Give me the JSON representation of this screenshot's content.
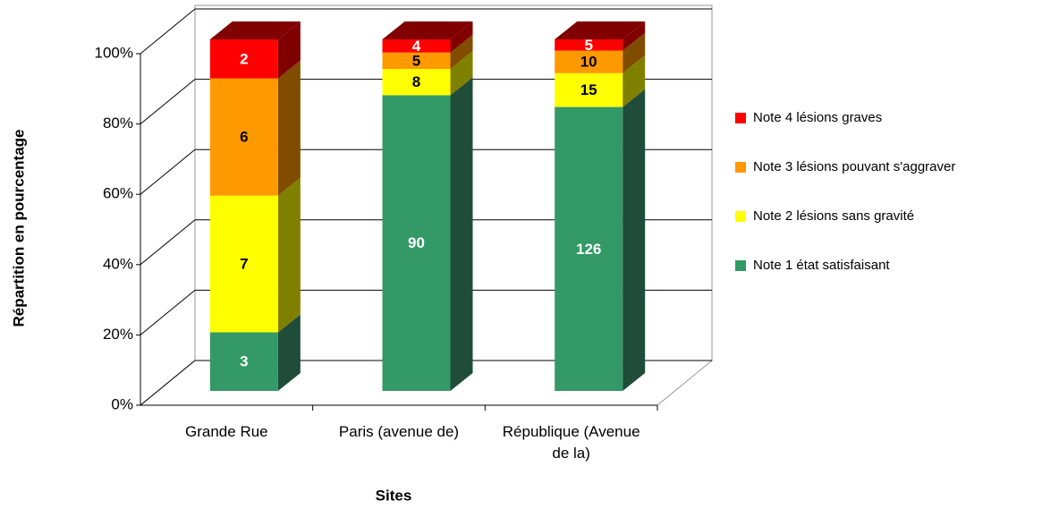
{
  "chart_data": {
    "type": "bar3d",
    "stacking": "percent",
    "y_label": "Répartition en pourcentage",
    "x_label": "Sites",
    "categories": [
      "Grande Rue",
      "Paris (avenue de)",
      "République (Avenue de la)"
    ],
    "series": [
      {
        "name": "Note 1 état satisfaisant",
        "color": "#339966",
        "side_color": "#1f4d3a",
        "label_color": "#ffffff",
        "values": [
          3,
          90,
          126
        ]
      },
      {
        "name": "Note 2 lésions sans gravité",
        "color": "#ffff00",
        "side_color": "#808000",
        "label_color": "#000000",
        "values": [
          7,
          8,
          15
        ]
      },
      {
        "name": "Note 3 lésions pouvant s'aggraver",
        "color": "#ff9900",
        "side_color": "#804d00",
        "label_color": "#000000",
        "values": [
          6,
          5,
          10
        ]
      },
      {
        "name": "Note 4 lésions graves",
        "color": "#ff0000",
        "side_color": "#800000",
        "label_color": "#ffffff",
        "values": [
          2,
          4,
          5
        ]
      }
    ],
    "ylim": [
      0,
      100
    ],
    "yticks": [
      {
        "value": 0,
        "label": "0%"
      },
      {
        "value": 20,
        "label": "20%"
      },
      {
        "value": 40,
        "label": "40%"
      },
      {
        "value": 60,
        "label": "60%"
      },
      {
        "value": 80,
        "label": "80%"
      },
      {
        "value": 100,
        "label": "100%"
      }
    ],
    "grid": true
  }
}
